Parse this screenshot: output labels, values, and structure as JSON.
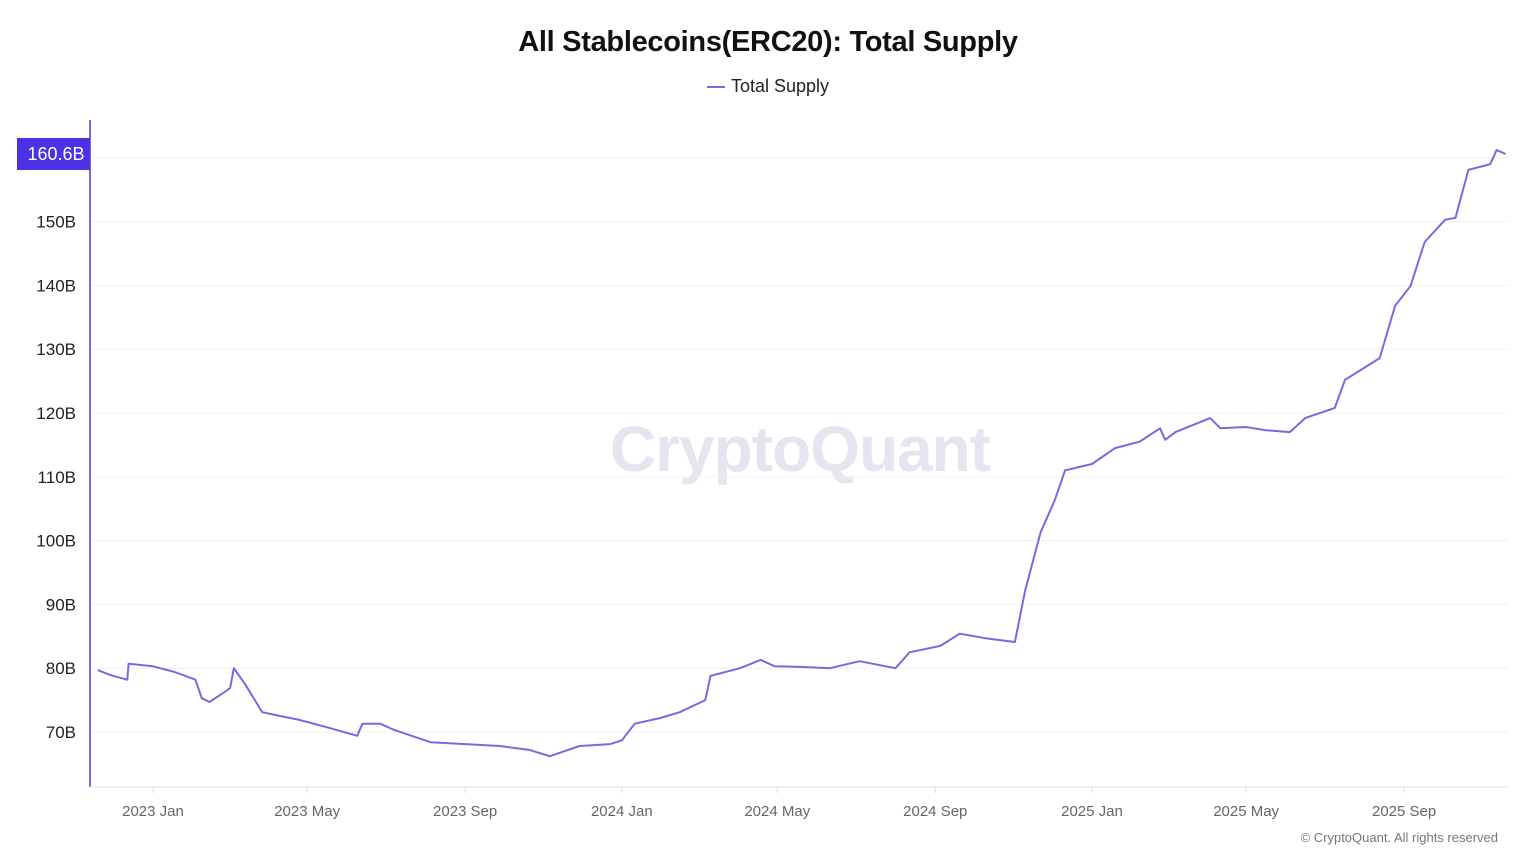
{
  "chart_data": {
    "type": "line",
    "title": "All Stablecoins(ERC20): Total Supply",
    "legend": [
      {
        "name": "Total Supply",
        "color": "#7b68e0"
      }
    ],
    "legend_placement": "top-center",
    "xlabel": "",
    "ylabel": "",
    "xlim": [
      "2022-11-12",
      "2025-11-22"
    ],
    "ylim": [
      61.4,
      165.9
    ],
    "y_unit": "B",
    "grid": true,
    "y_ticks": [
      70,
      80,
      90,
      100,
      110,
      120,
      130,
      140,
      150
    ],
    "y_tick_labels": [
      "70B",
      "80B",
      "90B",
      "100B",
      "110B",
      "120B",
      "130B",
      "140B",
      "150B"
    ],
    "x_ticks": [
      "2023-01-01",
      "2023-05-01",
      "2023-09-01",
      "2024-01-01",
      "2024-05-01",
      "2024-09-01",
      "2025-01-01",
      "2025-05-01",
      "2025-09-01"
    ],
    "x_tick_labels": [
      "2023 Jan",
      "2023 May",
      "2023 Sep",
      "2024 Jan",
      "2024 May",
      "2024 Sep",
      "2025 Jan",
      "2025 May",
      "2025 Sep"
    ],
    "current_value": 160.6,
    "current_value_label": "160.6B",
    "series": [
      {
        "name": "Total Supply",
        "color": "#7b68e0",
        "points": [
          [
            "2022-11-19",
            79.7
          ],
          [
            "2022-11-29",
            78.9
          ],
          [
            "2022-12-12",
            78.2
          ],
          [
            "2022-12-13",
            80.7
          ],
          [
            "2023-01-01",
            80.3
          ],
          [
            "2023-01-18",
            79.4
          ],
          [
            "2023-02-03",
            78.2
          ],
          [
            "2023-02-08",
            75.3
          ],
          [
            "2023-02-14",
            74.7
          ],
          [
            "2023-02-26",
            76.3
          ],
          [
            "2023-03-02",
            76.9
          ],
          [
            "2023-03-05",
            80.0
          ],
          [
            "2023-03-14",
            77.4
          ],
          [
            "2023-03-27",
            73.1
          ],
          [
            "2023-04-10",
            72.5
          ],
          [
            "2023-04-25",
            71.9
          ],
          [
            "2023-05-19",
            70.6
          ],
          [
            "2023-06-09",
            69.4
          ],
          [
            "2023-06-13",
            71.3
          ],
          [
            "2023-06-27",
            71.3
          ],
          [
            "2023-07-08",
            70.3
          ],
          [
            "2023-08-05",
            68.4
          ],
          [
            "2023-09-01",
            68.1
          ],
          [
            "2023-09-28",
            67.8
          ],
          [
            "2023-10-21",
            67.2
          ],
          [
            "2023-11-06",
            66.2
          ],
          [
            "2023-11-29",
            67.8
          ],
          [
            "2023-12-23",
            68.1
          ],
          [
            "2024-01-01",
            68.7
          ],
          [
            "2024-01-11",
            71.3
          ],
          [
            "2024-01-31",
            72.2
          ],
          [
            "2024-02-15",
            73.1
          ],
          [
            "2024-03-06",
            75.0
          ],
          [
            "2024-03-10",
            78.8
          ],
          [
            "2024-04-02",
            80.0
          ],
          [
            "2024-04-18",
            81.3
          ],
          [
            "2024-04-29",
            80.3
          ],
          [
            "2024-05-19",
            80.2
          ],
          [
            "2024-06-11",
            80.0
          ],
          [
            "2024-07-04",
            81.1
          ],
          [
            "2024-08-01",
            80.0
          ],
          [
            "2024-08-12",
            82.5
          ],
          [
            "2024-09-05",
            83.5
          ],
          [
            "2024-09-20",
            85.4
          ],
          [
            "2024-10-10",
            84.7
          ],
          [
            "2024-11-02",
            84.1
          ],
          [
            "2024-11-10",
            92.2
          ],
          [
            "2024-11-22",
            101.3
          ],
          [
            "2024-12-03",
            106.3
          ],
          [
            "2024-12-11",
            111.0
          ],
          [
            "2025-01-01",
            112.0
          ],
          [
            "2025-01-19",
            114.5
          ],
          [
            "2025-02-07",
            115.5
          ],
          [
            "2025-02-23",
            117.6
          ],
          [
            "2025-02-27",
            115.8
          ],
          [
            "2025-03-07",
            117.0
          ],
          [
            "2025-04-03",
            119.2
          ],
          [
            "2025-04-11",
            117.6
          ],
          [
            "2025-05-01",
            117.8
          ],
          [
            "2025-05-16",
            117.3
          ],
          [
            "2025-06-04",
            117.0
          ],
          [
            "2025-06-16",
            119.2
          ],
          [
            "2025-07-09",
            120.8
          ],
          [
            "2025-07-17",
            125.2
          ],
          [
            "2025-08-13",
            128.6
          ],
          [
            "2025-08-25",
            136.8
          ],
          [
            "2025-09-06",
            139.9
          ],
          [
            "2025-09-17",
            146.8
          ],
          [
            "2025-10-03",
            150.3
          ],
          [
            "2025-10-11",
            150.6
          ],
          [
            "2025-10-21",
            158.1
          ],
          [
            "2025-11-07",
            159.0
          ],
          [
            "2025-11-12",
            161.2
          ],
          [
            "2025-11-19",
            160.6
          ]
        ]
      }
    ]
  },
  "watermark": "CryptoQuant",
  "footer": "© CryptoQuant. All rights reserved"
}
